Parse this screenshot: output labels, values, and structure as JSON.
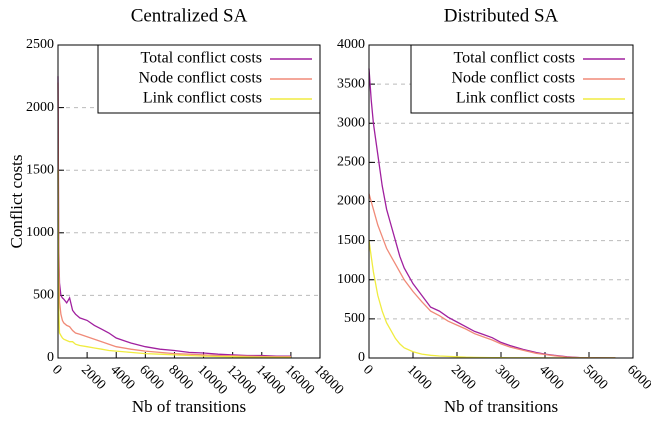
{
  "chart_data": [
    {
      "type": "line",
      "title": "Centralized SA",
      "x_label": "Nb of transitions",
      "y_label": "Conflict costs",
      "xlim": [
        0,
        18000
      ],
      "xticks": [
        0,
        2000,
        4000,
        6000,
        8000,
        10000,
        12000,
        14000,
        16000,
        18000
      ],
      "ylim": [
        0,
        2500
      ],
      "yticks": [
        0,
        500,
        1000,
        1500,
        2000,
        2500
      ],
      "grid": true,
      "legend": "upper right",
      "x": [
        0,
        50,
        100,
        200,
        300,
        400,
        600,
        800,
        1000,
        1200,
        1500,
        2000,
        2500,
        3000,
        3500,
        4000,
        5000,
        6000,
        7000,
        8000,
        9000,
        10000,
        11000,
        12000,
        13000,
        14000,
        15000,
        16000
      ],
      "series": [
        {
          "name": "Total conflict costs",
          "color": "#a0209f",
          "values": [
            2250,
            900,
            600,
            500,
            480,
            470,
            440,
            480,
            380,
            350,
            320,
            300,
            260,
            230,
            200,
            160,
            120,
            90,
            70,
            60,
            45,
            40,
            30,
            25,
            20,
            20,
            15,
            15
          ]
        },
        {
          "name": "Node conflict costs",
          "color": "#f08a78",
          "values": [
            2200,
            800,
            450,
            350,
            300,
            280,
            260,
            250,
            220,
            200,
            190,
            170,
            150,
            130,
            110,
            90,
            70,
            55,
            45,
            35,
            30,
            25,
            20,
            18,
            15,
            12,
            10,
            10
          ]
        },
        {
          "name": "Link conflict costs",
          "color": "#f0ec40",
          "values": [
            1500,
            400,
            200,
            180,
            160,
            150,
            140,
            130,
            130,
            110,
            100,
            90,
            80,
            70,
            60,
            55,
            45,
            35,
            30,
            25,
            20,
            15,
            12,
            10,
            8,
            6,
            5,
            5
          ]
        }
      ]
    },
    {
      "type": "line",
      "title": "Distributed SA",
      "x_label": "Nb of transitions",
      "xlim": [
        0,
        6000
      ],
      "xticks": [
        0,
        1000,
        2000,
        3000,
        4000,
        5000,
        6000
      ],
      "ylim": [
        0,
        4000
      ],
      "yticks": [
        0,
        500,
        1000,
        1500,
        2000,
        2500,
        3000,
        3500,
        4000
      ],
      "grid": true,
      "legend": "upper right",
      "x": [
        0,
        50,
        100,
        200,
        300,
        400,
        500,
        600,
        700,
        800,
        1000,
        1200,
        1400,
        1600,
        1800,
        2000,
        2200,
        2400,
        2600,
        2800,
        3000,
        3200,
        3500,
        3800,
        4000,
        4200,
        4500,
        4800,
        5000,
        5200,
        5500,
        5600
      ],
      "series": [
        {
          "name": "Total conflict costs",
          "color": "#a0209f",
          "values": [
            3700,
            3300,
            3000,
            2600,
            2200,
            1900,
            1700,
            1500,
            1300,
            1150,
            950,
            800,
            650,
            600,
            520,
            460,
            400,
            340,
            300,
            260,
            200,
            160,
            110,
            70,
            50,
            35,
            15,
            5,
            3,
            2,
            1,
            1
          ]
        },
        {
          "name": "Node conflict costs",
          "color": "#f08a78",
          "values": [
            2100,
            2000,
            1900,
            1700,
            1550,
            1400,
            1300,
            1200,
            1100,
            1000,
            850,
            720,
            600,
            540,
            470,
            420,
            370,
            310,
            270,
            230,
            180,
            140,
            100,
            60,
            45,
            30,
            12,
            4,
            2,
            1,
            1,
            1
          ]
        },
        {
          "name": "Link conflict costs",
          "color": "#f0ec40",
          "values": [
            1500,
            1300,
            1100,
            800,
            600,
            450,
            350,
            250,
            180,
            130,
            80,
            50,
            35,
            25,
            20,
            15,
            10,
            8,
            6,
            5,
            4,
            3,
            2,
            2,
            1,
            1,
            1,
            1,
            1,
            1,
            1,
            1
          ]
        }
      ]
    }
  ]
}
